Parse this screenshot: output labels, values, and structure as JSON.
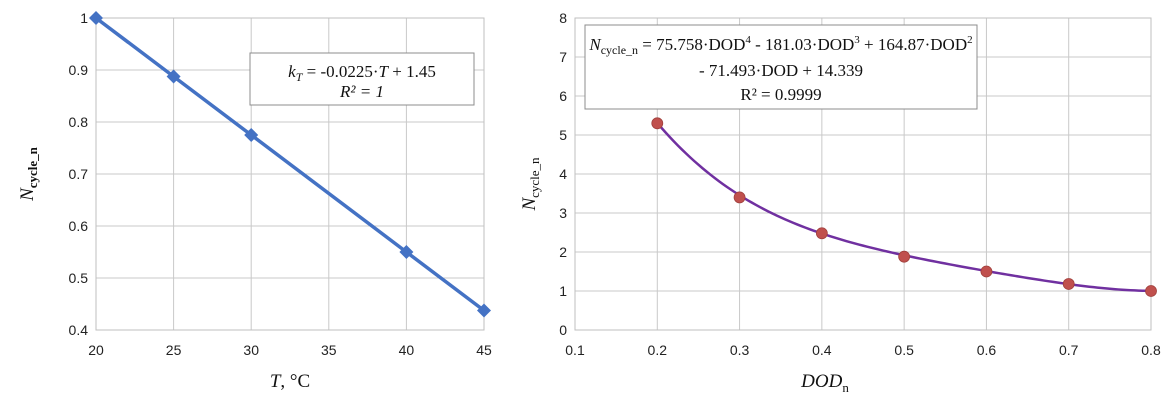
{
  "chart_data": [
    {
      "type": "line",
      "marker": "diamond",
      "color": "#4472C4",
      "series": [
        {
          "x": [
            20,
            25,
            30,
            40,
            45
          ],
          "y": [
            1.0,
            0.8875,
            0.775,
            0.55,
            0.4375
          ]
        }
      ],
      "xlim": [
        20,
        45
      ],
      "ylim": [
        0.4,
        1.0
      ],
      "x_ticks": [
        "20",
        "25",
        "30",
        "35",
        "40",
        "45"
      ],
      "y_ticks": [
        "0.4",
        "0.5",
        "0.6",
        "0.7",
        "0.8",
        "0.9",
        "1"
      ],
      "xlabel_var": "T",
      "xlabel_unit": ", °C",
      "ylabel_main": "N",
      "ylabel_sub": "cycle_n",
      "equation_line1": {
        "var": "k",
        "sub": "T",
        "rest1": " = -0.0225·",
        "var2": "T",
        "rest2": " + 1.45"
      },
      "r2_label": "R² = 1",
      "grid": true
    },
    {
      "type": "scatter",
      "marker": "circle",
      "marker_color": "#C0504D",
      "trendline": "polynomial order 4",
      "trendline_color": "#7030A0",
      "series": [
        {
          "x": [
            0.2,
            0.3,
            0.4,
            0.5,
            0.6,
            0.7,
            0.8
          ],
          "y": [
            5.3,
            3.4,
            2.48,
            1.88,
            1.5,
            1.18,
            1.0
          ]
        }
      ],
      "coefficients": [
        75.758,
        -181.03,
        164.87,
        -71.493,
        14.339
      ],
      "xlim": [
        0.1,
        0.8
      ],
      "ylim": [
        0,
        8
      ],
      "x_ticks": [
        "0.1",
        "0.2",
        "0.3",
        "0.4",
        "0.5",
        "0.6",
        "0.7",
        "0.8"
      ],
      "y_ticks": [
        "0",
        "1",
        "2",
        "3",
        "4",
        "5",
        "6",
        "7",
        "8"
      ],
      "xlabel_var": "DOD",
      "xlabel_sub": "n",
      "ylabel_main": "N",
      "ylabel_sub": "cycle_n",
      "equation_line1": {
        "lhs_main": "N",
        "lhs_sub": "cycle_n",
        "t1": " = 75.758·DOD",
        "e1": "4",
        "t2": " - 181.03·DOD",
        "e2": "3",
        "t3": " + 164.87·DOD",
        "e3": "2"
      },
      "equation_line2": "- 71.493·DOD + 14.339",
      "r2_label": "R² = 0.9999",
      "grid": true
    }
  ]
}
